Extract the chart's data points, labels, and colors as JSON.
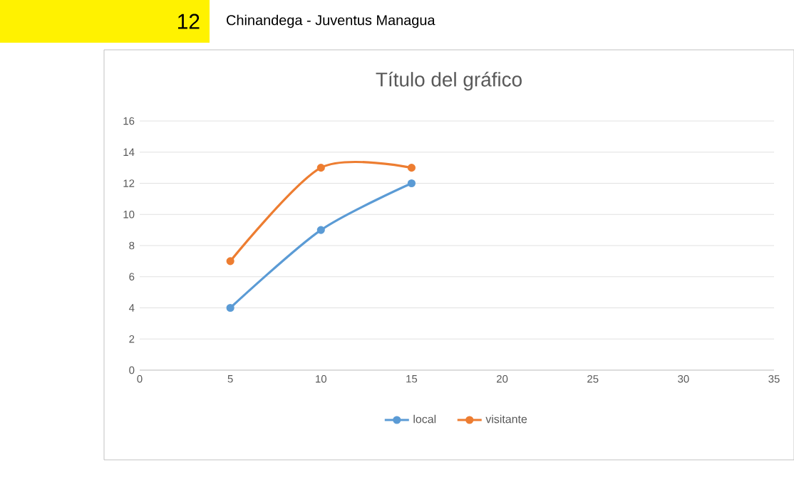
{
  "chart_data": {
    "type": "line",
    "title": "Título del gráfico",
    "annotations": [
      "12",
      "Chinandega - Juventus Managua"
    ],
    "x": [
      5,
      10,
      15
    ],
    "series": [
      {
        "name": "local",
        "color": "#5b9bd5",
        "values": [
          4,
          9,
          12
        ]
      },
      {
        "name": "visitante",
        "color": "#ed7d31",
        "values": [
          7,
          13,
          13
        ]
      }
    ],
    "xlim": [
      0,
      35
    ],
    "xticks": [
      0,
      5,
      10,
      15,
      20,
      25,
      30,
      35
    ],
    "ylim": [
      0,
      16
    ],
    "yticks": [
      0,
      2,
      4,
      6,
      8,
      10,
      12,
      14,
      16
    ],
    "grid": "y",
    "legend": "bottom",
    "marker": "circle",
    "line_style": "solid"
  }
}
